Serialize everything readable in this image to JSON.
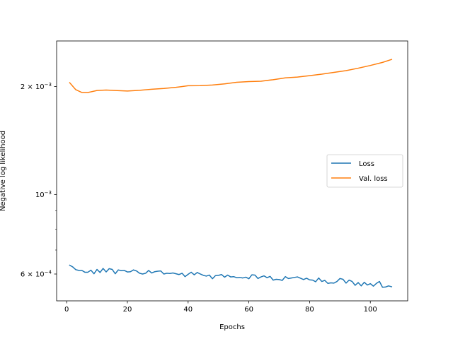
{
  "chart_data": {
    "type": "line",
    "title": "",
    "xlabel": "Epochs",
    "ylabel": "Negative log likelihood",
    "xlim": [
      -3.3,
      112.3
    ],
    "ylim": [
      0.000505,
      0.00268
    ],
    "yscale": "log",
    "grid": false,
    "legend_position": "center-right",
    "x_ticks": [
      0,
      20,
      40,
      60,
      80,
      100
    ],
    "y_ticks": [
      {
        "value": 0.002,
        "label": "2 × 10^−3",
        "mant": "2 × 10",
        "exp": "−3"
      },
      {
        "value": 0.001,
        "label": "10^−3",
        "mant": "10",
        "exp": "−3"
      },
      {
        "value": 0.0006,
        "label": "6 × 10^−4",
        "mant": "6 × 10",
        "exp": "−4"
      }
    ],
    "y_minor_ticks": [
      0.0007,
      0.0008,
      0.0009
    ],
    "series": [
      {
        "name": "Loss",
        "color": "#1f77b4",
        "x": [
          1,
          2,
          3,
          4,
          5,
          6,
          7,
          8,
          9,
          10,
          11,
          12,
          13,
          14,
          15,
          16,
          17,
          18,
          19,
          20,
          21,
          22,
          23,
          24,
          25,
          26,
          27,
          28,
          29,
          30,
          31,
          32,
          33,
          34,
          35,
          36,
          37,
          38,
          39,
          40,
          41,
          42,
          43,
          44,
          45,
          46,
          47,
          48,
          49,
          50,
          51,
          52,
          53,
          54,
          55,
          56,
          57,
          58,
          59,
          60,
          61,
          62,
          63,
          64,
          65,
          66,
          67,
          68,
          69,
          70,
          71,
          72,
          73,
          74,
          75,
          76,
          77,
          78,
          79,
          80,
          81,
          82,
          83,
          84,
          85,
          86,
          87,
          88,
          89,
          90,
          91,
          92,
          93,
          94,
          95,
          96,
          97,
          98,
          99,
          100,
          101,
          102,
          103,
          104,
          105,
          106,
          107
        ],
        "y": [
          0.000635,
          0.000628,
          0.000617,
          0.000614,
          0.000614,
          0.000607,
          0.000607,
          0.000615,
          0.000601,
          0.000618,
          0.000606,
          0.000622,
          0.000608,
          0.000621,
          0.000618,
          0.000601,
          0.000616,
          0.000613,
          0.000614,
          0.000608,
          0.000609,
          0.000616,
          0.000612,
          0.000603,
          0.0006,
          0.000603,
          0.000614,
          0.000604,
          0.000609,
          0.000611,
          0.000612,
          0.0006,
          0.000603,
          0.000602,
          0.000604,
          0.000601,
          0.000598,
          0.000603,
          0.00059,
          0.000599,
          0.000607,
          0.000597,
          0.000606,
          0.0006,
          0.000595,
          0.000592,
          0.000596,
          0.000582,
          0.000594,
          0.000595,
          0.000598,
          0.000588,
          0.000596,
          0.000589,
          0.00059,
          0.000586,
          0.000587,
          0.000585,
          0.000588,
          0.000582,
          0.000597,
          0.000596,
          0.000583,
          0.000589,
          0.000593,
          0.000586,
          0.000591,
          0.000577,
          0.00058,
          0.000579,
          0.000576,
          0.00059,
          0.000583,
          0.000585,
          0.000587,
          0.000589,
          0.000584,
          0.000579,
          0.000584,
          0.000578,
          0.000577,
          0.000571,
          0.000585,
          0.000572,
          0.000576,
          0.000565,
          0.000567,
          0.000566,
          0.000572,
          0.000583,
          0.00058,
          0.000566,
          0.000577,
          0.000572,
          0.000558,
          0.000568,
          0.000556,
          0.000569,
          0.000559,
          0.000564,
          0.000555,
          0.000565,
          0.000572,
          0.000551,
          0.000552,
          0.000556,
          0.000553
        ]
      },
      {
        "name": "Val. loss",
        "color": "#ff7f0e",
        "x": [
          1,
          3,
          5,
          7,
          10,
          13,
          16,
          20,
          24,
          28,
          32,
          36,
          40,
          44,
          48,
          52,
          56,
          60,
          64,
          68,
          72,
          76,
          80,
          84,
          88,
          92,
          96,
          100,
          104,
          107
        ],
        "y": [
          0.00205,
          0.00196,
          0.001925,
          0.001925,
          0.00195,
          0.001955,
          0.00195,
          0.001943,
          0.001952,
          0.001965,
          0.001975,
          0.00199,
          0.00201,
          0.002012,
          0.00202,
          0.002035,
          0.002055,
          0.002065,
          0.00207,
          0.00209,
          0.002115,
          0.002125,
          0.002145,
          0.002165,
          0.00219,
          0.002215,
          0.00225,
          0.00229,
          0.002335,
          0.00238
        ]
      }
    ]
  }
}
